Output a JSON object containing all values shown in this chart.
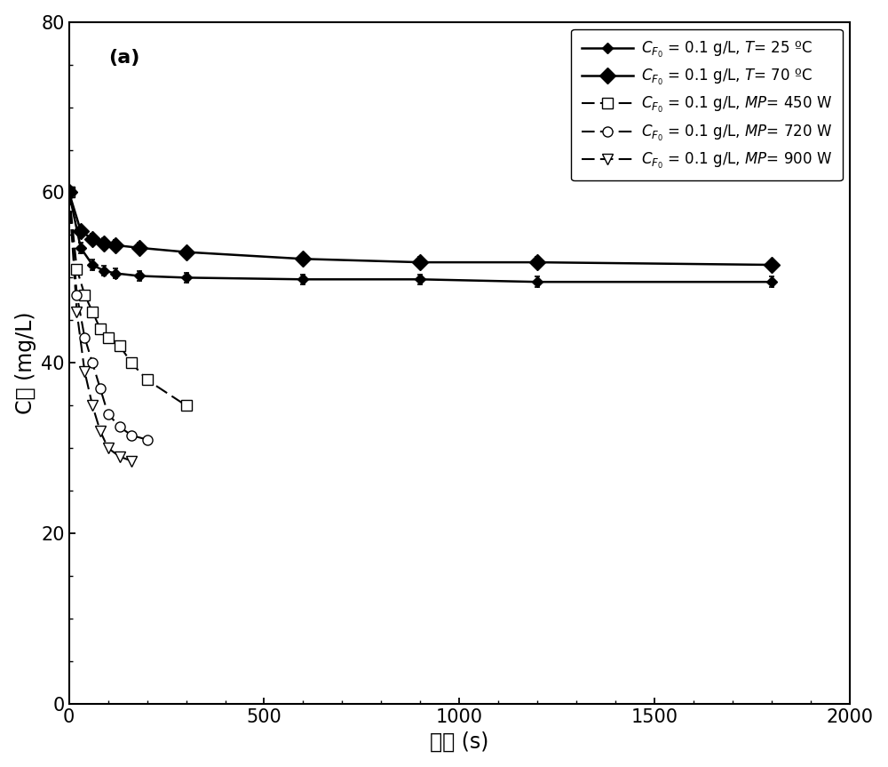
{
  "title": "(a)",
  "xlabel_cn": "时间 (s)",
  "ylabel_cn": "C黄 (mg/L)",
  "xlim": [
    0,
    2000
  ],
  "ylim": [
    0,
    80
  ],
  "xticks": [
    0,
    500,
    1000,
    1500,
    2000
  ],
  "yticks": [
    0,
    20,
    40,
    60,
    80
  ],
  "background_color": "#ffffff",
  "series": [
    {
      "label": "$C_{F_0}$ = 0.1 g/L, $T$= 25 ºC",
      "linestyle": "solid",
      "marker": "D",
      "marker_filled": true,
      "marker_size": 6,
      "linewidth": 1.8,
      "x_data": [
        0,
        30,
        60,
        90,
        120,
        180,
        300,
        600,
        900,
        1200,
        1800
      ],
      "y_data": [
        60,
        53.5,
        51.5,
        50.8,
        50.5,
        50.2,
        50.0,
        49.8,
        49.8,
        49.5,
        49.5
      ],
      "yerr": [
        0.0,
        0.6,
        0.6,
        0.6,
        0.6,
        0.6,
        0.6,
        0.6,
        0.6,
        0.6,
        0.6
      ]
    },
    {
      "label": "$C_{F_0}$ = 0.1 g/L, $T$= 70 ºC",
      "linestyle": "solid",
      "marker": "D",
      "marker_filled": true,
      "marker_size": 9,
      "linewidth": 1.8,
      "x_data": [
        0,
        30,
        60,
        90,
        120,
        180,
        300,
        600,
        900,
        1200,
        1800
      ],
      "y_data": [
        60,
        55.5,
        54.5,
        54.0,
        53.8,
        53.5,
        53.0,
        52.2,
        51.8,
        51.8,
        51.5
      ],
      "yerr": [
        0.0,
        0.6,
        0.6,
        0.6,
        0.6,
        0.6,
        0.0,
        0.0,
        0.6,
        0.6,
        0.0
      ]
    },
    {
      "label": "$C_{F_0}$ = 0.1 g/L, $\\mathit{MP}$= 450 W",
      "linestyle": "dashed",
      "marker": "s",
      "marker_filled": false,
      "marker_size": 8,
      "linewidth": 1.5,
      "x_data": [
        0,
        20,
        40,
        60,
        80,
        100,
        130,
        160,
        200,
        300
      ],
      "y_data": [
        60,
        51,
        48,
        46,
        44,
        43,
        42,
        40,
        38,
        35
      ],
      "yerr": null
    },
    {
      "label": "$C_{F_0}$ = 0.1 g/L, $\\mathit{MP}$= 720 W",
      "linestyle": "dashed",
      "marker": "o",
      "marker_filled": false,
      "marker_size": 8,
      "linewidth": 1.5,
      "x_data": [
        0,
        20,
        40,
        60,
        80,
        100,
        130,
        160,
        200
      ],
      "y_data": [
        60,
        48,
        43,
        40,
        37,
        34,
        32.5,
        31.5,
        31
      ],
      "yerr": null
    },
    {
      "label": "$C_{F_0}$ = 0.1 g/L, $\\mathit{MP}$= 900 W",
      "linestyle": "dashed",
      "marker": "v",
      "marker_filled": false,
      "marker_size": 8,
      "linewidth": 1.5,
      "x_data": [
        0,
        20,
        40,
        60,
        80,
        100,
        130,
        160
      ],
      "y_data": [
        60,
        46,
        39,
        35,
        32,
        30,
        29,
        28.5
      ],
      "yerr": null
    }
  ]
}
